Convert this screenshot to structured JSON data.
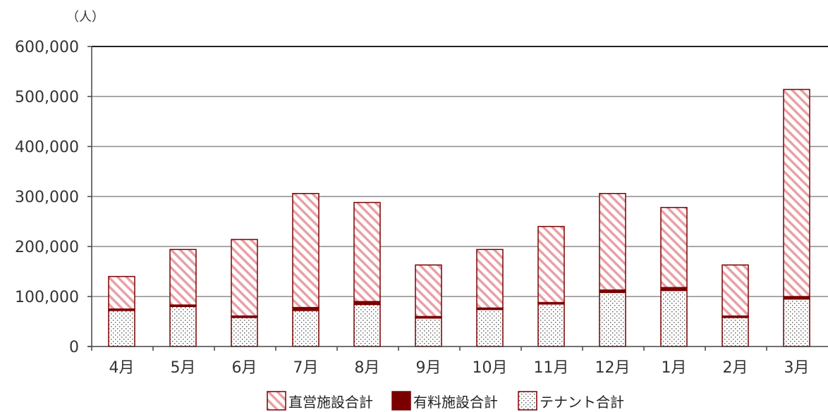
{
  "chart_data": {
    "type": "bar",
    "stacked": true,
    "unit_label": "（人）",
    "categories": [
      "4月",
      "5月",
      "6月",
      "7月",
      "8月",
      "9月",
      "10月",
      "11月",
      "12月",
      "1月",
      "2月",
      "3月"
    ],
    "series": [
      {
        "name": "テナント合計",
        "pattern": "dots",
        "color": "#7a0000",
        "values": [
          72000,
          80000,
          58000,
          72000,
          84000,
          57000,
          74000,
          85000,
          108000,
          112000,
          58000,
          95000
        ]
      },
      {
        "name": "有料施設合計",
        "pattern": "solid",
        "color": "#7a0000",
        "values": [
          3000,
          3000,
          3000,
          6000,
          6000,
          3000,
          3000,
          3000,
          5000,
          6000,
          3000,
          5000
        ]
      },
      {
        "name": "直営施設合計",
        "pattern": "diagonal",
        "color": "#e8a0a6",
        "values": [
          65000,
          111000,
          153000,
          228000,
          198000,
          103000,
          117000,
          152000,
          193000,
          160000,
          102000,
          414000
        ]
      }
    ],
    "legend_order": [
      "直営施設合計",
      "有料施設合計",
      "テナント合計"
    ],
    "legend_position": "bottom",
    "ylim": [
      0,
      600000
    ],
    "yticks": [
      "0",
      "100,000",
      "200,000",
      "300,000",
      "400,000",
      "500,000",
      "600,000"
    ],
    "ytick_values": [
      0,
      100000,
      200000,
      300000,
      400000,
      500000,
      600000
    ],
    "grid": true
  }
}
